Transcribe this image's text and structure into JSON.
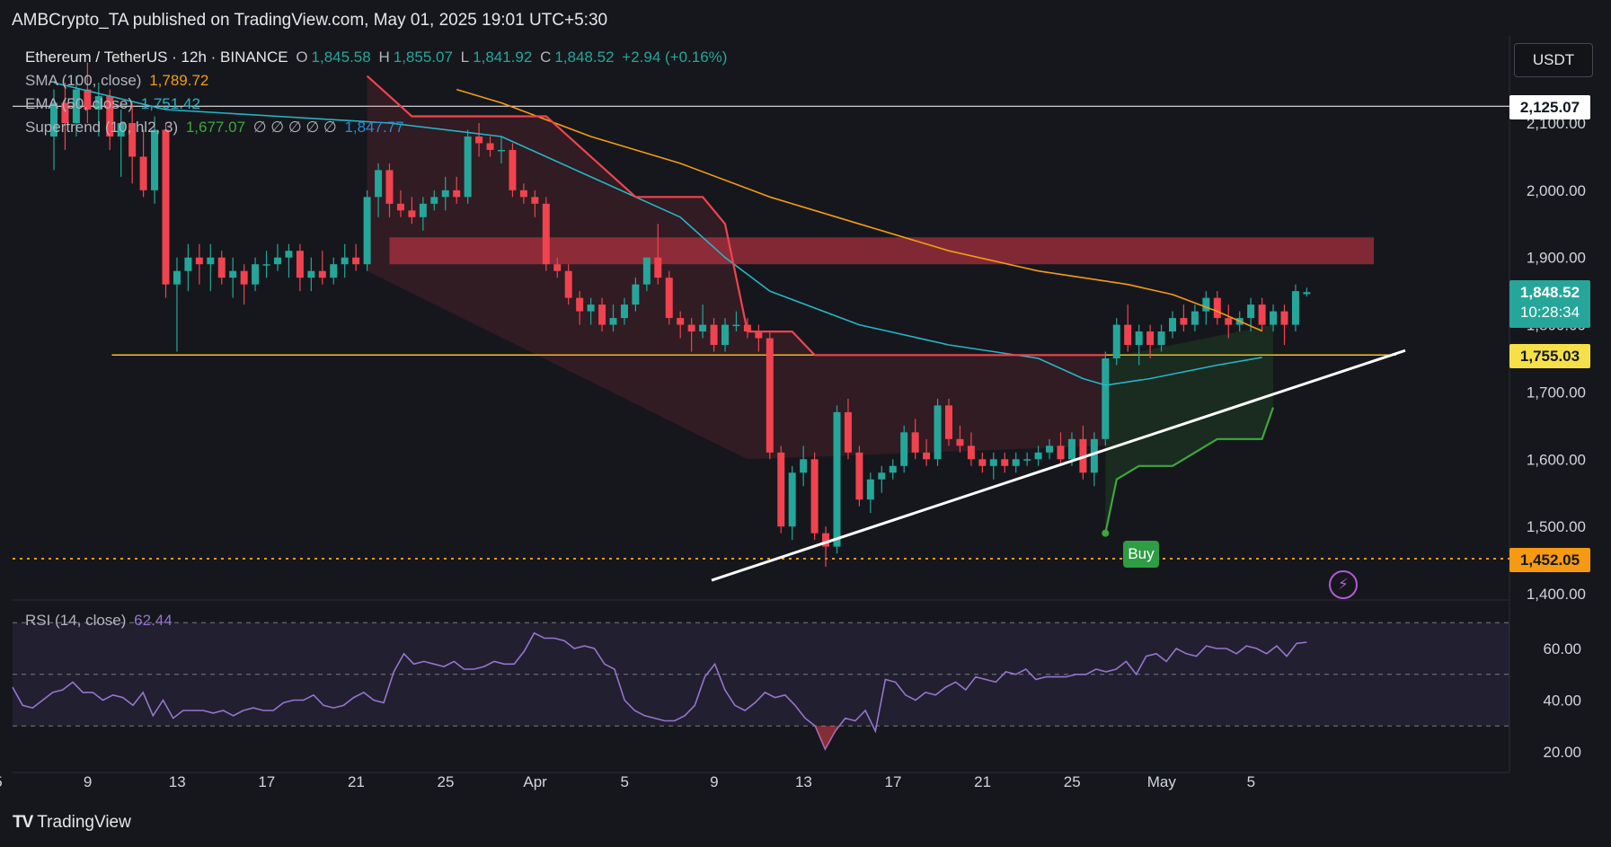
{
  "header": {
    "publisher": "AMBCrypto_TA published on TradingView.com, May 01, 2025 19:01 UTC+5:30",
    "symbol": "Ethereum / TetherUS · 12h · BINANCE",
    "ohlc": {
      "o_label": "O",
      "o": "1,845.58",
      "h_label": "H",
      "h": "1,855.07",
      "l_label": "L",
      "l": "1,841.92",
      "c_label": "C",
      "c": "1,848.52",
      "change": "+2.94 (+0.16%)"
    },
    "sma": {
      "label": "SMA (100, close)",
      "value": "1,789.72"
    },
    "ema": {
      "label": "EMA (50, close)",
      "value": "1,751.42"
    },
    "supertrend": {
      "label": "Supertrend (10, hl2, 3)",
      "value_up": "1,677.07",
      "na": "∅ ∅ ∅ ∅ ∅",
      "value_down": "1,847.77"
    },
    "unit": "USDT",
    "rsi": {
      "label": "RSI (14, close)",
      "value": "62.44"
    },
    "brand": "TradingView",
    "buy_label": "Buy"
  },
  "price_tags": {
    "level_2125": "2,125.07",
    "last_price": "1,848.52",
    "countdown": "10:28:34",
    "level_1755": "1,755.03",
    "level_1452": "1,452.05"
  },
  "colors": {
    "up": "#26a69a",
    "down": "#f0434f",
    "sma": "#f39c12",
    "ema": "#26b5c8",
    "st_up": "#3ca83c",
    "st_down": "#f0434f",
    "rsi": "#9575cd",
    "zone": "#d9394a",
    "support": "#f5c518"
  },
  "chart_data": {
    "type": "candlestick",
    "timeframe": "12h",
    "y_ticks": [
      2100,
      2000,
      1900,
      1800,
      1700,
      1600,
      1500,
      1400
    ],
    "y_tick_labels": [
      "2,100.00",
      "2,000.00",
      "1,900.00",
      "1,800.00",
      "1,700.00",
      "1,600.00",
      "1,500.00",
      "1,400.00"
    ],
    "x_labels": [
      {
        "label": "5",
        "x": 0
      },
      {
        "label": "9",
        "x": 8
      },
      {
        "label": "13",
        "x": 16
      },
      {
        "label": "17",
        "x": 24
      },
      {
        "label": "21",
        "x": 32
      },
      {
        "label": "25",
        "x": 40
      },
      {
        "label": "Apr",
        "x": 48
      },
      {
        "label": "5",
        "x": 56
      },
      {
        "label": "9",
        "x": 64
      },
      {
        "label": "13",
        "x": 72
      },
      {
        "label": "17",
        "x": 80
      },
      {
        "label": "21",
        "x": 88
      },
      {
        "label": "25",
        "x": 96
      },
      {
        "label": "May",
        "x": 104
      },
      {
        "label": "5",
        "x": 112
      }
    ],
    "candles": [
      [
        2080,
        2150,
        2030,
        2130
      ],
      [
        2130,
        2160,
        2060,
        2100
      ],
      [
        2100,
        2170,
        2080,
        2150
      ],
      [
        2150,
        2190,
        2100,
        2120
      ],
      [
        2120,
        2160,
        2080,
        2140
      ],
      [
        2140,
        2150,
        2060,
        2080
      ],
      [
        2080,
        2120,
        2020,
        2100
      ],
      [
        2100,
        2130,
        2010,
        2050
      ],
      [
        2050,
        2090,
        1990,
        2000
      ],
      [
        2000,
        2110,
        1980,
        2090
      ],
      [
        2090,
        2100,
        1840,
        1860
      ],
      [
        1860,
        1900,
        1760,
        1880
      ],
      [
        1880,
        1920,
        1850,
        1900
      ],
      [
        1900,
        1920,
        1860,
        1890
      ],
      [
        1890,
        1920,
        1850,
        1900
      ],
      [
        1900,
        1910,
        1860,
        1870
      ],
      [
        1870,
        1900,
        1840,
        1880
      ],
      [
        1880,
        1890,
        1830,
        1860
      ],
      [
        1860,
        1900,
        1850,
        1890
      ],
      [
        1890,
        1910,
        1870,
        1890
      ],
      [
        1890,
        1920,
        1880,
        1900
      ],
      [
        1900,
        1920,
        1870,
        1910
      ],
      [
        1910,
        1920,
        1850,
        1870
      ],
      [
        1870,
        1900,
        1850,
        1880
      ],
      [
        1880,
        1910,
        1860,
        1870
      ],
      [
        1870,
        1900,
        1860,
        1890
      ],
      [
        1890,
        1920,
        1870,
        1900
      ],
      [
        1900,
        1920,
        1880,
        1890
      ],
      [
        1890,
        2000,
        1880,
        1990
      ],
      [
        1990,
        2040,
        1960,
        2030
      ],
      [
        2030,
        2040,
        1960,
        1980
      ],
      [
        1980,
        2000,
        1960,
        1970
      ],
      [
        1970,
        1990,
        1950,
        1960
      ],
      [
        1960,
        1990,
        1940,
        1980
      ],
      [
        1980,
        2000,
        1970,
        1990
      ],
      [
        1990,
        2020,
        1970,
        2000
      ],
      [
        2000,
        2020,
        1980,
        1990
      ],
      [
        1990,
        2090,
        1980,
        2080
      ],
      [
        2080,
        2100,
        2050,
        2070
      ],
      [
        2070,
        2080,
        2050,
        2060
      ],
      [
        2060,
        2080,
        2040,
        2060
      ],
      [
        2060,
        2070,
        1990,
        2000
      ],
      [
        2000,
        2010,
        1980,
        1990
      ],
      [
        1990,
        2000,
        1960,
        1980
      ],
      [
        1980,
        1990,
        1880,
        1890
      ],
      [
        1890,
        1900,
        1870,
        1880
      ],
      [
        1880,
        1890,
        1830,
        1840
      ],
      [
        1840,
        1850,
        1800,
        1820
      ],
      [
        1820,
        1840,
        1800,
        1830
      ],
      [
        1830,
        1840,
        1790,
        1800
      ],
      [
        1800,
        1830,
        1790,
        1810
      ],
      [
        1810,
        1840,
        1800,
        1830
      ],
      [
        1830,
        1870,
        1820,
        1860
      ],
      [
        1860,
        1900,
        1850,
        1900
      ],
      [
        1900,
        1950,
        1860,
        1870
      ],
      [
        1870,
        1880,
        1800,
        1810
      ],
      [
        1810,
        1820,
        1780,
        1800
      ],
      [
        1800,
        1810,
        1760,
        1790
      ],
      [
        1790,
        1830,
        1780,
        1800
      ],
      [
        1800,
        1810,
        1760,
        1770
      ],
      [
        1770,
        1810,
        1760,
        1800
      ],
      [
        1800,
        1820,
        1790,
        1800
      ],
      [
        1800,
        1810,
        1780,
        1790
      ],
      [
        1790,
        1800,
        1760,
        1780
      ],
      [
        1780,
        1790,
        1600,
        1610
      ],
      [
        1610,
        1620,
        1490,
        1500
      ],
      [
        1500,
        1590,
        1480,
        1580
      ],
      [
        1580,
        1620,
        1560,
        1600
      ],
      [
        1600,
        1610,
        1480,
        1490
      ],
      [
        1490,
        1500,
        1440,
        1470
      ],
      [
        1470,
        1680,
        1460,
        1670
      ],
      [
        1670,
        1690,
        1600,
        1610
      ],
      [
        1610,
        1620,
        1530,
        1540
      ],
      [
        1540,
        1580,
        1520,
        1570
      ],
      [
        1570,
        1590,
        1550,
        1580
      ],
      [
        1580,
        1600,
        1570,
        1590
      ],
      [
        1590,
        1650,
        1580,
        1640
      ],
      [
        1640,
        1660,
        1600,
        1610
      ],
      [
        1610,
        1630,
        1590,
        1600
      ],
      [
        1600,
        1690,
        1590,
        1680
      ],
      [
        1680,
        1690,
        1620,
        1630
      ],
      [
        1630,
        1650,
        1610,
        1620
      ],
      [
        1620,
        1640,
        1590,
        1600
      ],
      [
        1600,
        1610,
        1580,
        1590
      ],
      [
        1590,
        1610,
        1570,
        1600
      ],
      [
        1600,
        1610,
        1580,
        1590
      ],
      [
        1590,
        1610,
        1580,
        1600
      ],
      [
        1600,
        1610,
        1590,
        1600
      ],
      [
        1600,
        1620,
        1590,
        1610
      ],
      [
        1610,
        1630,
        1600,
        1620
      ],
      [
        1620,
        1640,
        1590,
        1600
      ],
      [
        1600,
        1640,
        1590,
        1630
      ],
      [
        1630,
        1650,
        1570,
        1580
      ],
      [
        1580,
        1640,
        1560,
        1630
      ],
      [
        1630,
        1760,
        1620,
        1750
      ],
      [
        1750,
        1810,
        1740,
        1800
      ],
      [
        1800,
        1830,
        1760,
        1770
      ],
      [
        1770,
        1800,
        1740,
        1790
      ],
      [
        1790,
        1800,
        1750,
        1770
      ],
      [
        1770,
        1800,
        1760,
        1790
      ],
      [
        1790,
        1820,
        1780,
        1810
      ],
      [
        1810,
        1830,
        1790,
        1800
      ],
      [
        1800,
        1830,
        1790,
        1820
      ],
      [
        1820,
        1850,
        1800,
        1840
      ],
      [
        1840,
        1850,
        1800,
        1810
      ],
      [
        1810,
        1830,
        1780,
        1800
      ],
      [
        1800,
        1820,
        1790,
        1810
      ],
      [
        1810,
        1840,
        1790,
        1830
      ],
      [
        1830,
        1840,
        1790,
        1800
      ],
      [
        1800,
        1830,
        1790,
        1820
      ],
      [
        1820,
        1830,
        1770,
        1800
      ],
      [
        1800,
        1860,
        1790,
        1850
      ],
      [
        1845.58,
        1855.07,
        1841.92,
        1848.52
      ]
    ],
    "sma_100": [
      [
        36,
        2150
      ],
      [
        40,
        2130
      ],
      [
        48,
        2080
      ],
      [
        56,
        2040
      ],
      [
        64,
        1990
      ],
      [
        72,
        1950
      ],
      [
        80,
        1910
      ],
      [
        88,
        1880
      ],
      [
        96,
        1860
      ],
      [
        100,
        1845
      ],
      [
        104,
        1820
      ],
      [
        108,
        1790.72
      ]
    ],
    "ema_50": [
      [
        0,
        2160
      ],
      [
        10,
        2120
      ],
      [
        20,
        2110
      ],
      [
        30,
        2100
      ],
      [
        40,
        2080
      ],
      [
        48,
        2020
      ],
      [
        56,
        1960
      ],
      [
        60,
        1900
      ],
      [
        64,
        1850
      ],
      [
        72,
        1800
      ],
      [
        80,
        1770
      ],
      [
        88,
        1750
      ],
      [
        92,
        1720
      ],
      [
        94,
        1710
      ],
      [
        98,
        1720
      ],
      [
        104,
        1740
      ],
      [
        108,
        1751.42
      ]
    ],
    "supertrend_down": [
      [
        28,
        2170
      ],
      [
        32,
        2110
      ],
      [
        44,
        2110
      ],
      [
        48,
        2050
      ],
      [
        52,
        1990
      ],
      [
        58,
        1990
      ],
      [
        60,
        1950
      ],
      [
        62,
        1790
      ],
      [
        66,
        1790
      ],
      [
        68,
        1755
      ],
      [
        94,
        1755
      ]
    ],
    "supertrend_up": [
      [
        94,
        1490
      ],
      [
        95,
        1570
      ],
      [
        97,
        1590
      ],
      [
        100,
        1590
      ],
      [
        102,
        1610
      ],
      [
        104,
        1630
      ],
      [
        108,
        1630
      ],
      [
        109,
        1677.07
      ]
    ],
    "resistance_zone": {
      "from_x": 30,
      "to_x": 118,
      "low": 1890,
      "high": 1930
    },
    "support_line": {
      "price": 1755,
      "from_x": 10,
      "to_x": 120
    },
    "dotted_line": {
      "price": 1452.05
    },
    "level_line": {
      "price": 2125.07
    },
    "trendline": [
      [
        60,
        1420
      ],
      [
        120,
        1755
      ]
    ],
    "rsi": {
      "levels": [
        70,
        50,
        30
      ],
      "y_ticks": [
        60,
        40,
        20
      ],
      "y_tick_labels": [
        "60.00",
        "40.00",
        "20.00"
      ],
      "values": [
        45,
        38,
        37,
        40,
        43,
        44,
        47,
        43,
        43,
        40,
        42,
        41,
        38,
        43,
        34,
        40,
        33,
        36,
        36,
        36,
        35,
        36,
        34,
        36,
        37,
        36,
        36,
        39,
        40,
        40,
        42,
        38,
        37,
        38,
        41,
        43,
        40,
        39,
        51,
        58,
        54,
        55,
        54,
        53,
        55,
        52,
        52,
        53,
        55,
        54,
        54,
        59,
        66,
        64,
        64,
        63,
        60,
        61,
        60,
        54,
        52,
        40,
        36,
        34,
        33,
        32,
        32,
        34,
        38,
        49,
        54,
        44,
        38,
        36,
        39,
        43,
        41,
        42,
        38,
        33,
        30,
        21,
        28,
        33,
        32,
        36,
        28,
        48,
        47,
        42,
        40,
        43,
        42,
        45,
        47,
        44,
        49,
        48,
        47,
        51,
        50,
        52,
        48,
        49,
        49,
        49,
        50,
        50,
        52,
        51,
        52,
        55,
        50,
        57,
        58,
        55,
        60,
        58,
        57,
        61,
        60,
        60,
        58,
        61,
        60,
        58,
        61,
        57,
        62,
        62.44
      ]
    }
  }
}
